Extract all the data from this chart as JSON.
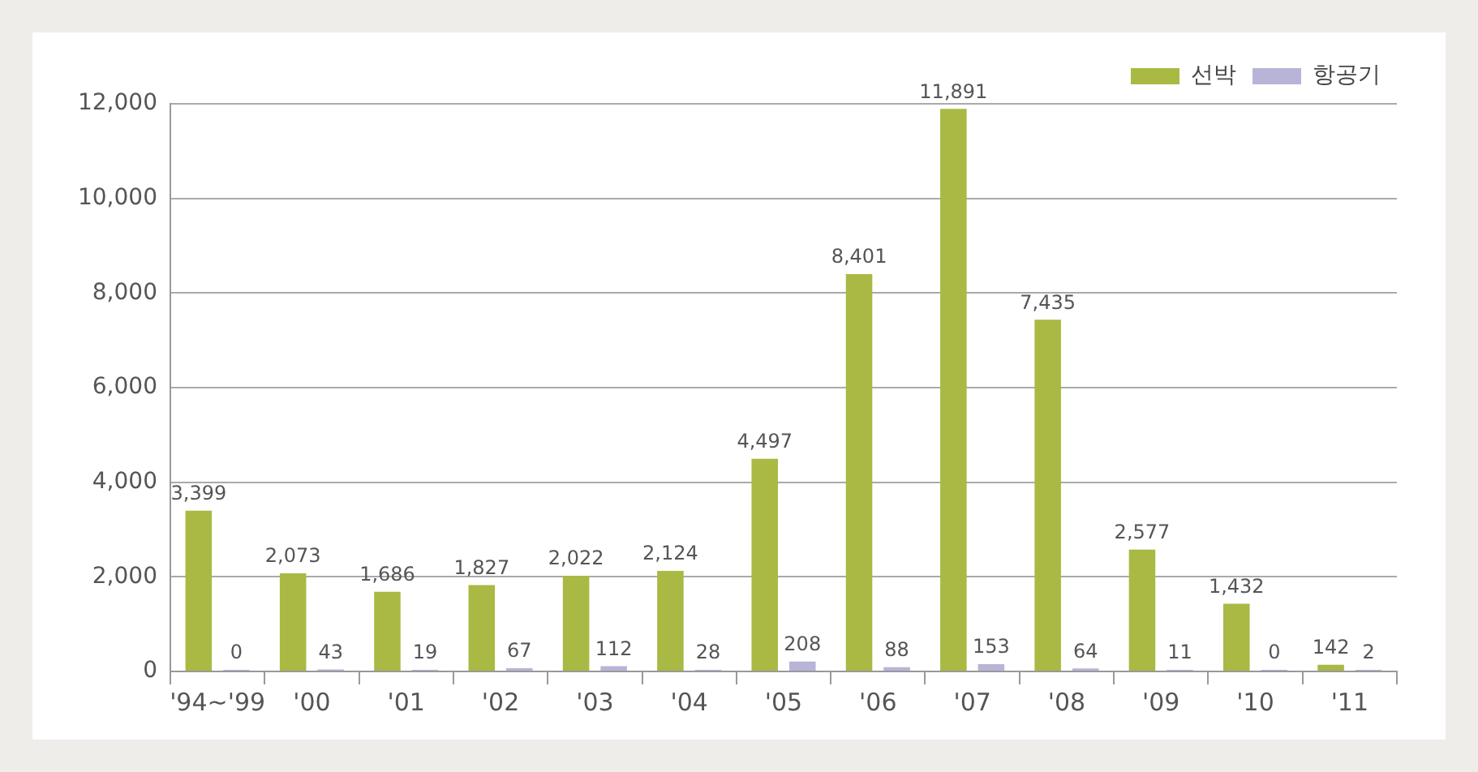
{
  "chart_data": {
    "type": "bar",
    "categories": [
      "'94~'99",
      "'00",
      "'01",
      "'02",
      "'03",
      "'04",
      "'05",
      "'06",
      "'07",
      "'08",
      "'09",
      "'10",
      "'11"
    ],
    "series": [
      {
        "name": "선박",
        "color": "#a9b943",
        "values": [
          3399,
          2073,
          1686,
          1827,
          2022,
          2124,
          4497,
          8401,
          11891,
          7435,
          2577,
          1432,
          142
        ],
        "value_labels": [
          "3,399",
          "2,073",
          "1,686",
          "1,827",
          "2,022",
          "2,124",
          "4,497",
          "8,401",
          "11,891",
          "7,435",
          "2,577",
          "1,432",
          "142"
        ]
      },
      {
        "name": "항공기",
        "color": "#b8b4d8",
        "values": [
          0,
          43,
          19,
          67,
          112,
          28,
          208,
          88,
          153,
          64,
          11,
          0,
          2
        ],
        "value_labels": [
          "0",
          "43",
          "19",
          "67",
          "112",
          "28",
          "208",
          "88",
          "153",
          "64",
          "11",
          "0",
          "2"
        ]
      }
    ],
    "ylim": [
      0,
      12000
    ],
    "yticks": [
      {
        "value": 0,
        "label": "0"
      },
      {
        "value": 2000,
        "label": "2,000"
      },
      {
        "value": 4000,
        "label": "4,000"
      },
      {
        "value": 6000,
        "label": "6,000"
      },
      {
        "value": 8000,
        "label": "8,000"
      },
      {
        "value": 10000,
        "label": "10,000"
      },
      {
        "value": 12000,
        "label": "12,000"
      }
    ],
    "grid": "y",
    "legend": "top right"
  }
}
